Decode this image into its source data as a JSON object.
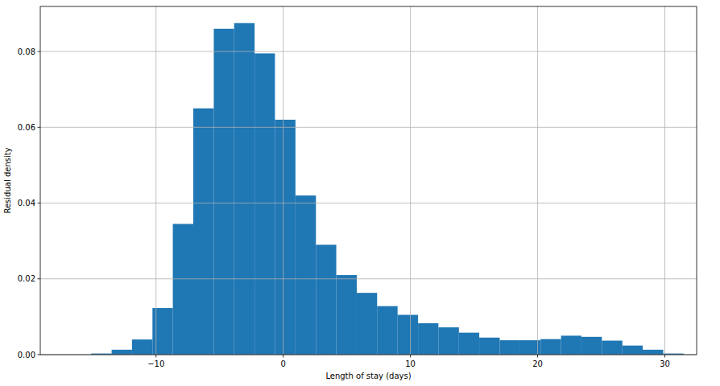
{
  "chart_data": {
    "type": "histogram",
    "x_label": "Length of stay (days)",
    "y_label": "Residual density",
    "bins": [
      -15.1,
      -13.49,
      -11.89,
      -10.28,
      -8.68,
      -7.07,
      -5.46,
      -3.86,
      -2.25,
      -0.65,
      0.96,
      2.57,
      4.17,
      5.78,
      7.38,
      8.99,
      10.6,
      12.2,
      13.81,
      15.41,
      17.02,
      18.63,
      20.23,
      21.84,
      23.44,
      25.05,
      26.66,
      28.26,
      29.87,
      31.47
    ],
    "values": [
      0.0003,
      0.0013,
      0.004,
      0.0123,
      0.0345,
      0.065,
      0.086,
      0.0875,
      0.0795,
      0.062,
      0.042,
      0.029,
      0.021,
      0.0163,
      0.0128,
      0.0105,
      0.0083,
      0.0072,
      0.0058,
      0.0045,
      0.0038,
      0.0038,
      0.0041,
      0.005,
      0.0047,
      0.0037,
      0.0024,
      0.0013,
      0.0003
    ],
    "color": "#1f77b4",
    "xlim": [
      -19.1,
      32.5
    ],
    "xticks": [
      {
        "value": -10,
        "label": "−10"
      },
      0,
      10,
      20,
      30
    ],
    "ylim": [
      0,
      0.0919
    ],
    "yticks": [
      {
        "value": 0,
        "label": "0.00"
      },
      {
        "value": 0.02,
        "label": "0.02"
      },
      {
        "value": 0.04,
        "label": "0.04"
      },
      {
        "value": 0.06,
        "label": "0.06"
      },
      {
        "value": 0.08,
        "label": "0.08"
      }
    ],
    "grid": true
  }
}
